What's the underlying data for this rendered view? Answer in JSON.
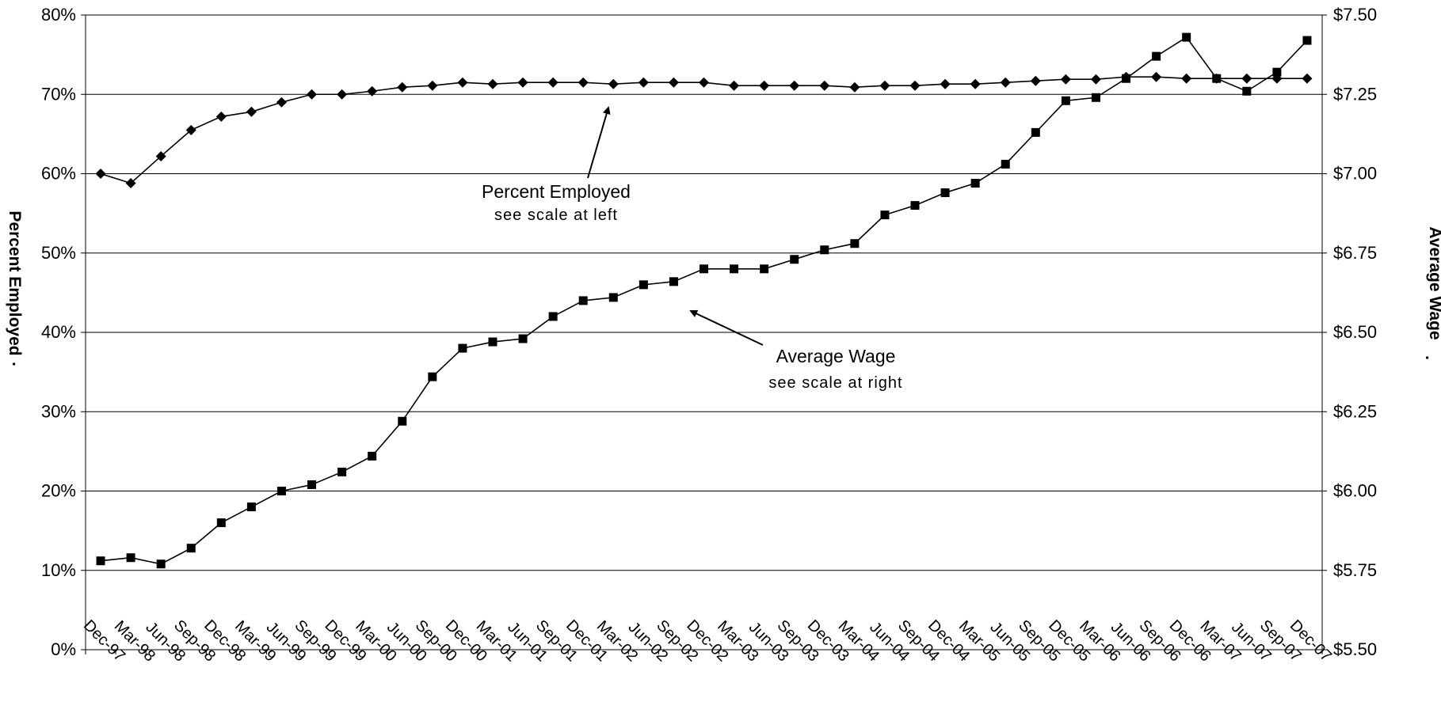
{
  "chart_data": {
    "type": "line",
    "categories": [
      "Dec-97",
      "Mar-98",
      "Jun-98",
      "Sep-98",
      "Dec-98",
      "Mar-99",
      "Jun-99",
      "Sep-99",
      "Dec-99",
      "Mar-00",
      "Jun-00",
      "Sep-00",
      "Dec-00",
      "Mar-01",
      "Jun-01",
      "Sep-01",
      "Dec-01",
      "Mar-02",
      "Jun-02",
      "Sep-02",
      "Dec-02",
      "Mar-03",
      "Jun-03",
      "Sep-03",
      "Dec-03",
      "Mar-04",
      "Jun-04",
      "Sep-04",
      "Dec-04",
      "Mar-05",
      "Jun-05",
      "Sep-05",
      "Dec-05",
      "Mar-06",
      "Jun-06",
      "Sep-06",
      "Dec-06",
      "Mar-07",
      "Jun-07",
      "Sep-07",
      "Dec-07"
    ],
    "series": [
      {
        "name": "Percent Employed",
        "axis": "left",
        "marker": "diamond",
        "values": [
          60.0,
          58.8,
          62.2,
          65.5,
          67.2,
          67.8,
          69.0,
          70.0,
          70.0,
          70.4,
          70.9,
          71.1,
          71.5,
          71.3,
          71.5,
          71.5,
          71.5,
          71.3,
          71.5,
          71.5,
          71.5,
          71.1,
          71.1,
          71.1,
          71.1,
          70.9,
          71.1,
          71.1,
          71.3,
          71.3,
          71.5,
          71.7,
          71.9,
          71.9,
          72.2,
          72.2,
          72.0,
          72.0,
          72.0,
          72.0,
          72.0
        ]
      },
      {
        "name": "Average Wage",
        "axis": "right",
        "marker": "square",
        "values": [
          5.78,
          5.79,
          5.77,
          5.82,
          5.9,
          5.95,
          6.0,
          6.02,
          6.06,
          6.11,
          6.22,
          6.36,
          6.45,
          6.47,
          6.48,
          6.55,
          6.6,
          6.61,
          6.65,
          6.66,
          6.7,
          6.7,
          6.7,
          6.73,
          6.76,
          6.78,
          6.87,
          6.9,
          6.94,
          6.97,
          7.03,
          7.13,
          7.23,
          7.24,
          7.3,
          7.37,
          7.43,
          7.3,
          7.26,
          7.32,
          7.42
        ]
      }
    ],
    "y_left": {
      "label": "Percent Employed",
      "label_suffix": ".",
      "ylim": [
        0,
        80
      ],
      "ticks": [
        "0%",
        "10%",
        "20%",
        "30%",
        "40%",
        "50%",
        "60%",
        "70%",
        "80%"
      ]
    },
    "y_right": {
      "label": "Average Wage",
      "label_suffix": ".",
      "ylim": [
        5.5,
        7.5
      ],
      "ticks": [
        "$5.50",
        "$5.75",
        "$6.00",
        "$6.25",
        "$6.50",
        "$6.75",
        "$7.00",
        "$7.25",
        "$7.50"
      ]
    },
    "grid": true,
    "legend": "none",
    "annotations": [
      {
        "title": "Percent Employed",
        "subtitle": "see scale at left"
      },
      {
        "title": "Average Wage",
        "subtitle": "see scale at right"
      }
    ]
  }
}
